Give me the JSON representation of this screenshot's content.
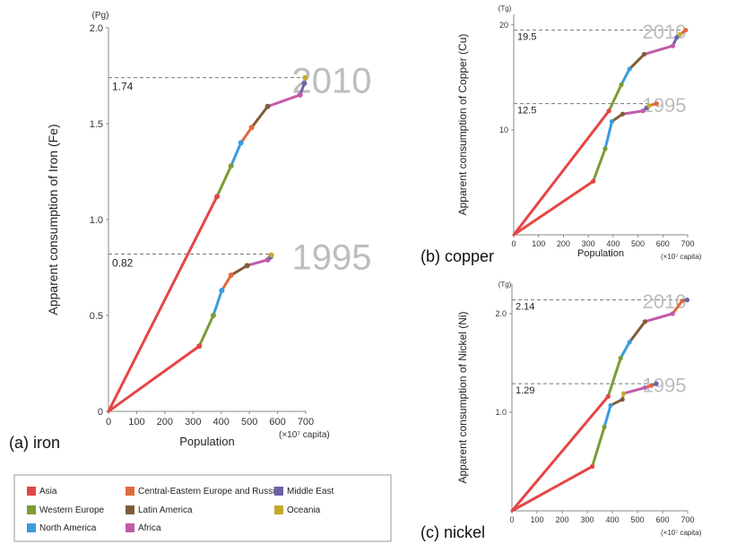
{
  "region_colors": {
    "Asia": "#e64545",
    "Central-Eastern Europe and Russia": "#e0693c",
    "Middle East": "#6a63aa",
    "Western Europe": "#7c9c34",
    "Latin America": "#805c3a",
    "Oceania": "#c4aa2c",
    "North America": "#3a9be0",
    "Africa": "#c25aaa"
  },
  "legend": {
    "items": [
      {
        "label": "Asia",
        "color": "#e64545"
      },
      {
        "label": "Central-Eastern Europe and Russia",
        "color": "#e0693c"
      },
      {
        "label": "Middle East",
        "color": "#6a63aa"
      },
      {
        "label": "Western Europe",
        "color": "#7c9c34"
      },
      {
        "label": "Latin America",
        "color": "#805c3a"
      },
      {
        "label": "Oceania",
        "color": "#c4aa2c"
      },
      {
        "label": "North America",
        "color": "#3a9be0"
      },
      {
        "label": "Africa",
        "color": "#c25aaa"
      }
    ]
  },
  "chart_data": [
    {
      "type": "line",
      "caption": "(a) iron",
      "ylabel": "Apparent consumption of Iron (Fe)",
      "yunit": "(Pg)",
      "xlabel": "Population",
      "xunit": "(×10⁷ capita)",
      "xlim": [
        0,
        700
      ],
      "ylim": [
        0,
        2.0
      ],
      "xticks": [
        0,
        100,
        200,
        300,
        400,
        500,
        600,
        700
      ],
      "yticks": [
        0,
        0.5,
        1.0,
        1.5,
        2.0
      ],
      "ytick_labels": [
        "0",
        "0.5",
        "1.0",
        "1.5",
        "2.0"
      ],
      "grid": false,
      "series": [
        {
          "name": "1995",
          "reference_value": 0.82,
          "reference_label": "0.82",
          "points": [
            {
              "region": "Asia",
              "x": 0,
              "y": 0
            },
            {
              "region": "Asia",
              "x": 322,
              "y": 0.34
            },
            {
              "region": "Western Europe",
              "x": 372,
              "y": 0.5
            },
            {
              "region": "North America",
              "x": 402,
              "y": 0.63
            },
            {
              "region": "Central-Eastern Europe and Russia",
              "x": 435,
              "y": 0.71
            },
            {
              "region": "Latin America",
              "x": 492,
              "y": 0.76
            },
            {
              "region": "Africa",
              "x": 565,
              "y": 0.79
            },
            {
              "region": "Middle East",
              "x": 575,
              "y": 0.805
            },
            {
              "region": "Oceania",
              "x": 578,
              "y": 0.815
            }
          ]
        },
        {
          "name": "2010",
          "reference_value": 1.74,
          "reference_label": "1.74",
          "points": [
            {
              "region": "Asia",
              "x": 0,
              "y": 0
            },
            {
              "region": "Asia",
              "x": 385,
              "y": 1.12
            },
            {
              "region": "Western Europe",
              "x": 435,
              "y": 1.28
            },
            {
              "region": "North America",
              "x": 470,
              "y": 1.4
            },
            {
              "region": "Central-Eastern Europe and Russia",
              "x": 508,
              "y": 1.48
            },
            {
              "region": "Latin America",
              "x": 565,
              "y": 1.59
            },
            {
              "region": "Africa",
              "x": 680,
              "y": 1.65
            },
            {
              "region": "Middle East",
              "x": 695,
              "y": 1.71
            },
            {
              "region": "Oceania",
              "x": 698,
              "y": 1.74
            }
          ]
        }
      ]
    },
    {
      "type": "line",
      "caption": "(b) copper",
      "ylabel": "Apparent consumption of Copper (Cu)",
      "yunit": "(Tg)",
      "xlabel": "Population",
      "xunit": "(×10⁷ capita)",
      "xlim": [
        0,
        700
      ],
      "ylim": [
        0,
        21
      ],
      "xticks": [
        0,
        100,
        200,
        300,
        400,
        500,
        600,
        700
      ],
      "yticks": [
        10,
        20
      ],
      "ytick_labels": [
        "10",
        "20"
      ],
      "grid": false,
      "series": [
        {
          "name": "1995",
          "reference_value": 12.5,
          "reference_label": "12.5",
          "points": [
            {
              "region": "Asia",
              "x": 0,
              "y": 0
            },
            {
              "region": "Asia",
              "x": 320,
              "y": 5.1
            },
            {
              "region": "Western Europe",
              "x": 368,
              "y": 8.2
            },
            {
              "region": "North America",
              "x": 395,
              "y": 10.8
            },
            {
              "region": "Latin America",
              "x": 438,
              "y": 11.5
            },
            {
              "region": "Africa",
              "x": 520,
              "y": 11.8
            },
            {
              "region": "Middle East",
              "x": 535,
              "y": 12.1
            },
            {
              "region": "Oceania",
              "x": 545,
              "y": 12.3
            },
            {
              "region": "Central-Eastern Europe and Russia",
              "x": 575,
              "y": 12.5
            }
          ]
        },
        {
          "name": "2010",
          "reference_value": 19.5,
          "reference_label": "19.5",
          "points": [
            {
              "region": "Asia",
              "x": 0,
              "y": 0
            },
            {
              "region": "Asia",
              "x": 383,
              "y": 11.8
            },
            {
              "region": "Western Europe",
              "x": 433,
              "y": 14.3
            },
            {
              "region": "North America",
              "x": 466,
              "y": 15.8
            },
            {
              "region": "Latin America",
              "x": 525,
              "y": 17.2
            },
            {
              "region": "Africa",
              "x": 640,
              "y": 18.0
            },
            {
              "region": "Middle East",
              "x": 656,
              "y": 18.8
            },
            {
              "region": "Oceania",
              "x": 670,
              "y": 19.1
            },
            {
              "region": "Central-Eastern Europe and Russia",
              "x": 692,
              "y": 19.5
            }
          ]
        }
      ]
    },
    {
      "type": "line",
      "caption": "(c) nickel",
      "ylabel": "Apparent consumption of Nickel (Ni)",
      "yunit": "(Tg)",
      "xlabel": "Population",
      "xunit": "(×10⁷ capita)",
      "xlim": [
        0,
        700
      ],
      "ylim": [
        0,
        2.3
      ],
      "xticks": [
        0,
        100,
        200,
        300,
        400,
        500,
        600,
        700
      ],
      "yticks": [
        1.0,
        2.0
      ],
      "ytick_labels": [
        "1.0",
        "2.0"
      ],
      "grid": false,
      "series": [
        {
          "name": "1995",
          "reference_value": 1.29,
          "reference_label": "1.29",
          "points": [
            {
              "region": "Asia",
              "x": 0,
              "y": 0
            },
            {
              "region": "Asia",
              "x": 320,
              "y": 0.45
            },
            {
              "region": "Western Europe",
              "x": 368,
              "y": 0.85
            },
            {
              "region": "North America",
              "x": 393,
              "y": 1.07
            },
            {
              "region": "Latin America",
              "x": 440,
              "y": 1.13
            },
            {
              "region": "Oceania",
              "x": 445,
              "y": 1.19
            },
            {
              "region": "Africa",
              "x": 530,
              "y": 1.25
            },
            {
              "region": "Central-Eastern Europe and Russia",
              "x": 555,
              "y": 1.27
            },
            {
              "region": "Middle East",
              "x": 575,
              "y": 1.29
            }
          ]
        },
        {
          "name": "2010",
          "reference_value": 2.14,
          "reference_label": "2.14",
          "points": [
            {
              "region": "Asia",
              "x": 0,
              "y": 0
            },
            {
              "region": "Asia",
              "x": 383,
              "y": 1.16
            },
            {
              "region": "Western Europe",
              "x": 433,
              "y": 1.55
            },
            {
              "region": "North America",
              "x": 468,
              "y": 1.71
            },
            {
              "region": "Latin America",
              "x": 530,
              "y": 1.92
            },
            {
              "region": "Africa",
              "x": 640,
              "y": 2.0
            },
            {
              "region": "Central-Eastern Europe and Russia",
              "x": 678,
              "y": 2.13
            },
            {
              "region": "Middle East",
              "x": 698,
              "y": 2.14
            }
          ]
        }
      ]
    }
  ]
}
